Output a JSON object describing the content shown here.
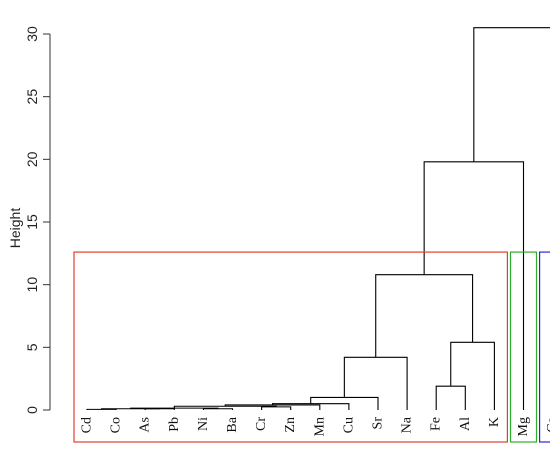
{
  "chart_data": {
    "type": "dendrogram",
    "title": "",
    "xlabel": "",
    "ylabel": "Height",
    "ylim": [
      0,
      31
    ],
    "yticks": [
      0,
      5,
      10,
      15,
      20,
      25,
      30
    ],
    "leaves": [
      "Cd",
      "Co",
      "As",
      "Pb",
      "Ni",
      "Ba",
      "Cr",
      "Zn",
      "Mn",
      "Cu",
      "Sr",
      "Na",
      "Fe",
      "Al",
      "K",
      "Mg",
      "Ca"
    ],
    "merges": [
      {
        "left": [
          "Cd"
        ],
        "right": [
          "Co"
        ],
        "height": 0.05
      },
      {
        "left": [
          "As"
        ],
        "right": [
          "Pb"
        ],
        "height": 0.1
      },
      {
        "left": [
          "Cd",
          "Co"
        ],
        "right": [
          "As",
          "Pb"
        ],
        "height": 0.1
      },
      {
        "left": [
          "Ni"
        ],
        "right": [
          "Ba"
        ],
        "height": 0.1
      },
      {
        "left": [
          "Cd",
          "Co",
          "As",
          "Pb"
        ],
        "right": [
          "Ni",
          "Ba"
        ],
        "height": 0.15
      },
      {
        "left": [
          "Cr"
        ],
        "right": [
          "Zn"
        ],
        "height": 0.25
      },
      {
        "left": [
          "Cd",
          "Co",
          "As",
          "Pb",
          "Ni",
          "Ba"
        ],
        "right": [
          "Cr",
          "Zn"
        ],
        "height": 0.3
      },
      {
        "left": [
          "Cd",
          "Co",
          "As",
          "Pb",
          "Ni",
          "Ba",
          "Cr",
          "Zn"
        ],
        "right": [
          "Mn"
        ],
        "height": 0.4
      },
      {
        "left": [
          "Cd",
          "Co",
          "As",
          "Pb",
          "Ni",
          "Ba",
          "Cr",
          "Zn",
          "Mn"
        ],
        "right": [
          "Cu"
        ],
        "height": 0.5
      },
      {
        "left": [
          "Cd",
          "Co",
          "As",
          "Pb",
          "Ni",
          "Ba",
          "Cr",
          "Zn",
          "Mn",
          "Cu"
        ],
        "right": [
          "Sr"
        ],
        "height": 1.0
      },
      {
        "left": [
          "Cd",
          "Co",
          "As",
          "Pb",
          "Ni",
          "Ba",
          "Cr",
          "Zn",
          "Mn",
          "Cu",
          "Sr"
        ],
        "right": [
          "Na"
        ],
        "height": 4.2
      },
      {
        "left": [
          "Fe"
        ],
        "right": [
          "Al"
        ],
        "height": 1.9
      },
      {
        "left": [
          "Fe",
          "Al"
        ],
        "right": [
          "K"
        ],
        "height": 5.4
      },
      {
        "left": [
          "Cd",
          "Co",
          "As",
          "Pb",
          "Ni",
          "Ba",
          "Cr",
          "Zn",
          "Mn",
          "Cu",
          "Sr",
          "Na"
        ],
        "right": [
          "Fe",
          "Al",
          "K"
        ],
        "height": 10.8
      },
      {
        "left": [
          "Cd",
          "Co",
          "As",
          "Pb",
          "Ni",
          "Ba",
          "Cr",
          "Zn",
          "Mn",
          "Cu",
          "Sr",
          "Na",
          "Fe",
          "Al",
          "K"
        ],
        "right": [
          "Mg"
        ],
        "height": 19.8
      },
      {
        "left": [
          "Cd",
          "Co",
          "As",
          "Pb",
          "Ni",
          "Ba",
          "Cr",
          "Zn",
          "Mn",
          "Cu",
          "Sr",
          "Na",
          "Fe",
          "Al",
          "K",
          "Mg"
        ],
        "right": [
          "Ca"
        ],
        "height": 30.5
      }
    ],
    "cluster_boxes": [
      {
        "members": [
          "Cd",
          "Co",
          "As",
          "Pb",
          "Ni",
          "Ba",
          "Cr",
          "Zn",
          "Mn",
          "Cu",
          "Sr",
          "Na",
          "Fe",
          "Al",
          "K"
        ],
        "color": "#e0402e"
      },
      {
        "members": [
          "Mg"
        ],
        "color": "#2eae2e"
      },
      {
        "members": [
          "Ca"
        ],
        "color": "#2a2ad0"
      }
    ],
    "colors": {
      "tree": "#000000",
      "axis": "#333333"
    }
  }
}
